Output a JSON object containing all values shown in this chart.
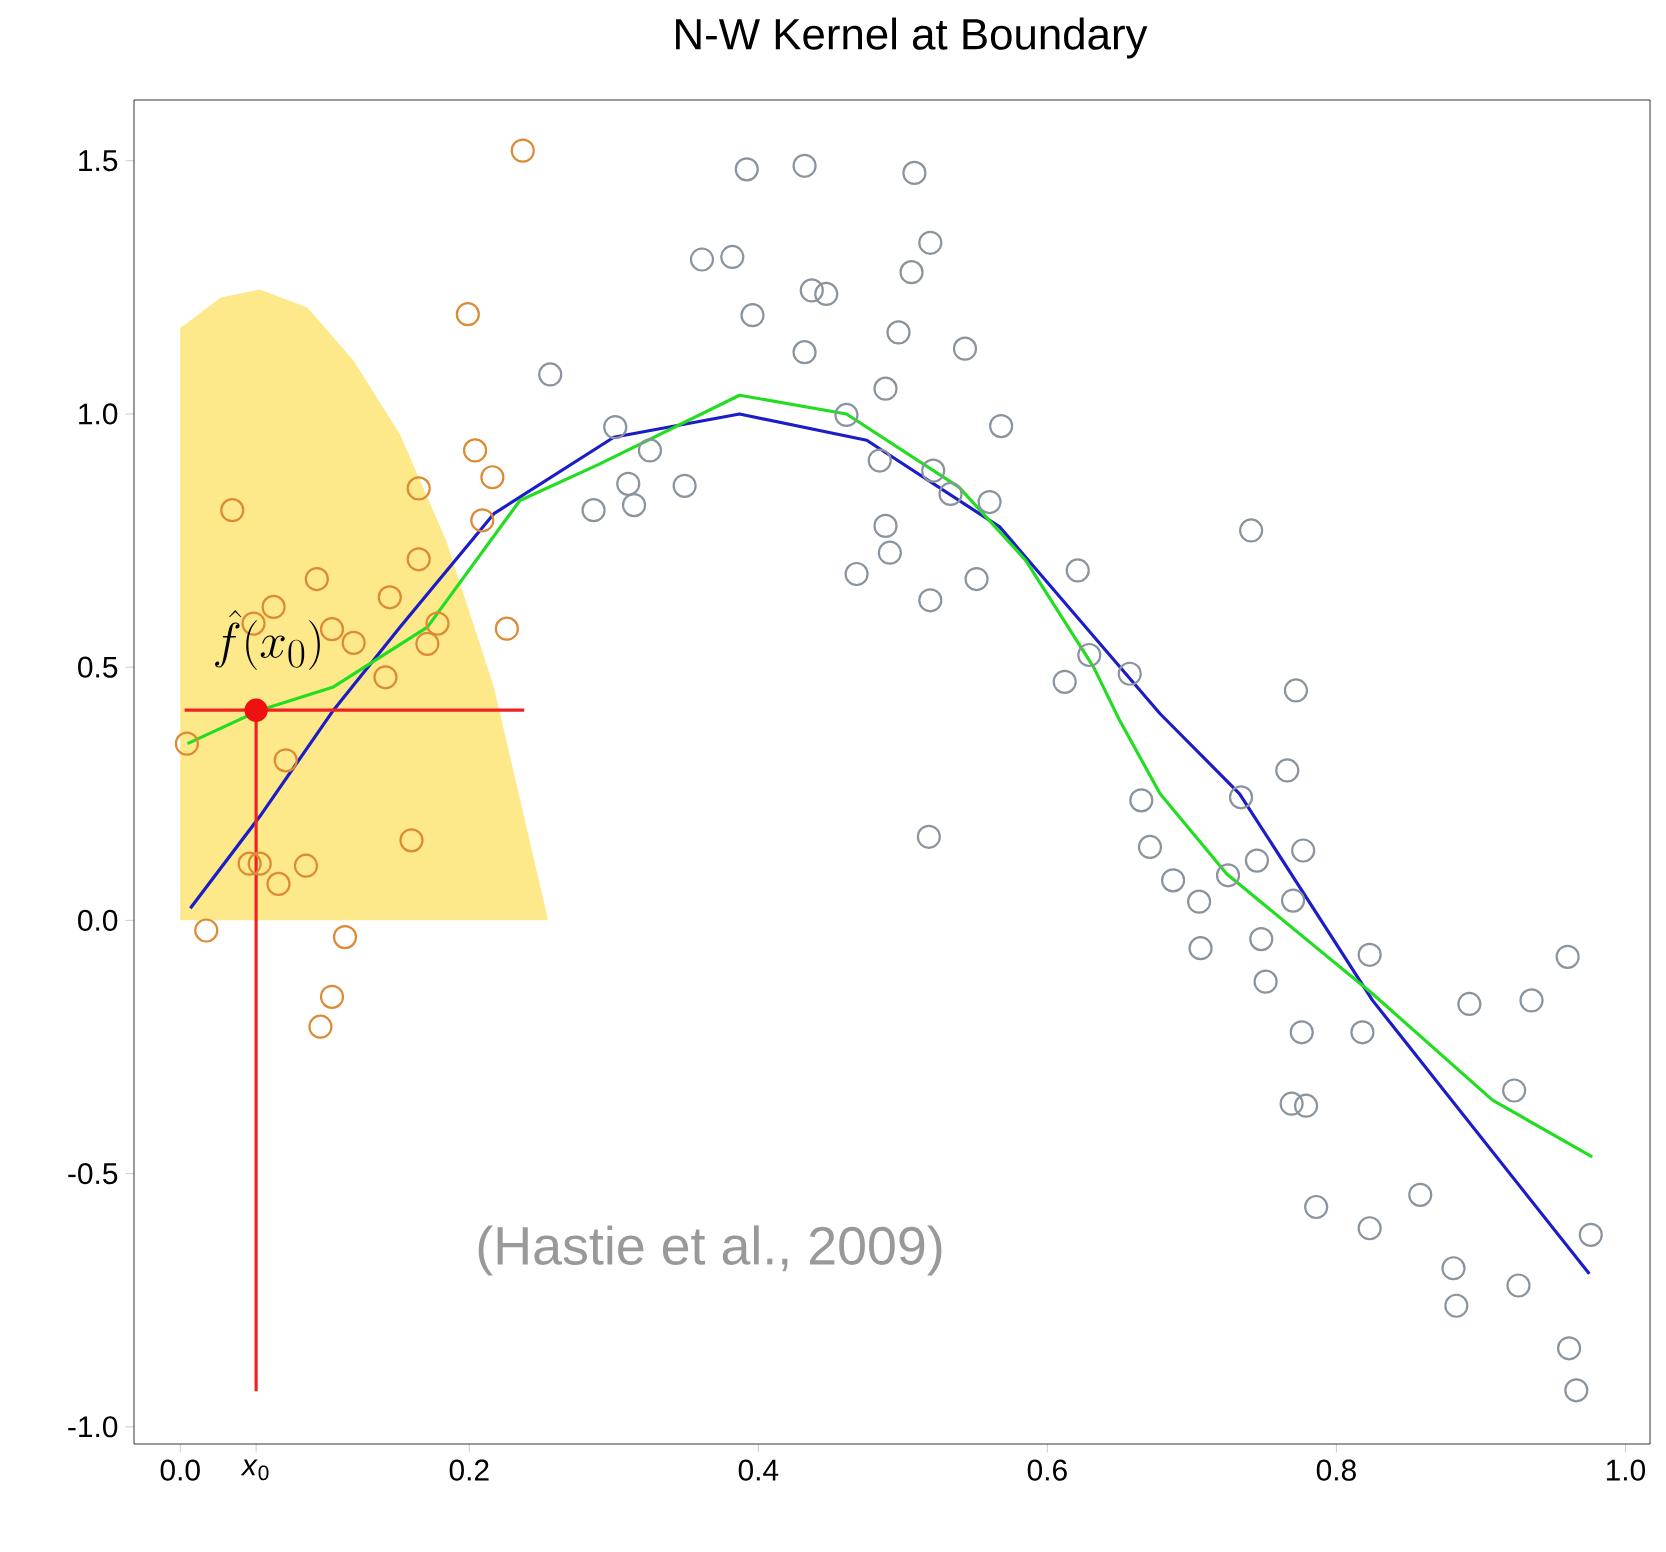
{
  "chart_data": {
    "type": "scatter",
    "title": "N-W Kernel at Boundary",
    "xlim": [
      -0.032,
      1.017
    ],
    "ylim": [
      -1.034,
      1.62
    ],
    "xticks": [
      {
        "value": 0,
        "label": "0.0"
      },
      {
        "value": 0.0525,
        "label": "*x*$_{0}$"
      },
      0.2,
      0.4,
      0.6,
      0.8,
      {
        "value": 1,
        "label": "1.0"
      }
    ],
    "yticks": [
      {
        "value": -1,
        "label": "-1.0"
      },
      -0.5,
      {
        "value": 0,
        "label": "0.0"
      },
      0.5,
      {
        "value": 1,
        "label": "1.0"
      },
      1.5
    ],
    "annotations": [
      {
        "text": "\\hat{f}(x_0)",
        "x": 0.0525,
        "y": 0.415
      },
      "(Hastie et al., 2009)"
    ],
    "series": [
      {
        "type": "area",
        "color": "#fde98a",
        "marker": "none",
        "x": [
          0.0,
          0.005,
          0.028,
          0.055,
          0.088,
          0.12,
          0.152,
          0.184,
          0.217,
          0.254
        ],
        "values": [
          1.17,
          1.18,
          1.23,
          1.246,
          1.21,
          1.105,
          0.96,
          0.75,
          0.461,
          0.007
        ]
      },
      {
        "color": "#dd8a35",
        "marker": "circle",
        "x": [
          0.237,
          0.199,
          0.036,
          0.204,
          0.216,
          0.165,
          0.209,
          0.165,
          0.0945,
          0.0646,
          0.0507,
          0.145,
          0.105,
          0.12,
          0.171,
          0.178,
          0.226,
          0.142,
          0.0046,
          0.073,
          0.16,
          0.048,
          0.055,
          0.068,
          0.087,
          0.018,
          0.114,
          0.105,
          0.097
        ],
        "values": [
          1.52,
          1.197,
          0.81,
          0.928,
          0.875,
          0.853,
          0.79,
          0.713,
          0.674,
          0.619,
          0.586,
          0.638,
          0.575,
          0.548,
          0.546,
          0.586,
          0.576,
          0.48,
          0.349,
          0.316,
          0.158,
          0.112,
          0.112,
          0.072,
          0.108,
          -0.02,
          -0.033,
          -0.151,
          -0.21
        ]
      },
      {
        "color": "#8a949e",
        "marker": "circle",
        "x": [
          0.256,
          0.286,
          0.301,
          0.325,
          0.31,
          0.314,
          0.349,
          0.392,
          0.432,
          0.508,
          0.361,
          0.382,
          0.519,
          0.506,
          0.396,
          0.437,
          0.447,
          0.432,
          0.497,
          0.543,
          0.488,
          0.461,
          0.568,
          0.484,
          0.521,
          0.533,
          0.56,
          0.488,
          0.491,
          0.468,
          0.551,
          0.519,
          0.621,
          0.629,
          0.612,
          0.657,
          0.518,
          0.665,
          0.671,
          0.741,
          0.772,
          0.766,
          0.734,
          0.777,
          0.687,
          0.705,
          0.725,
          0.745,
          0.77,
          0.706,
          0.748,
          0.751,
          0.823,
          0.776,
          0.818,
          0.769,
          0.779,
          0.892,
          0.935,
          0.96,
          0.923,
          0.786,
          0.823,
          0.858,
          0.881,
          0.883,
          0.926,
          0.976,
          0.961,
          0.966
        ],
        "values": [
          1.078,
          0.81,
          0.974,
          0.928,
          0.862,
          0.82,
          0.858,
          1.483,
          1.49,
          1.476,
          1.305,
          1.31,
          1.338,
          1.28,
          1.195,
          1.244,
          1.237,
          1.122,
          1.161,
          1.129,
          1.05,
          0.998,
          0.976,
          0.908,
          0.888,
          0.842,
          0.826,
          0.779,
          0.726,
          0.684,
          0.674,
          0.632,
          0.691,
          0.524,
          0.471,
          0.487,
          0.165,
          0.237,
          0.145,
          0.77,
          0.454,
          0.296,
          0.243,
          0.138,
          0.079,
          0.037,
          0.089,
          0.118,
          0.039,
          -0.055,
          -0.037,
          -0.121,
          -0.068,
          -0.221,
          -0.221,
          -0.362,
          -0.366,
          -0.165,
          -0.158,
          -0.072,
          -0.336,
          -0.566,
          -0.608,
          -0.542,
          -0.687,
          -0.761,
          -0.721,
          -0.621,
          -0.845,
          -0.928
        ]
      },
      {
        "type": "line",
        "color": "#1c1cc8",
        "marker": "none",
        "x": [
          0.007,
          0.055,
          0.106,
          0.152,
          0.217,
          0.3,
          0.387,
          0.475,
          0.567,
          0.678,
          0.733,
          0.825,
          0.975
        ],
        "values": [
          0.024,
          0.205,
          0.415,
          0.579,
          0.803,
          0.954,
          1.0,
          0.948,
          0.777,
          0.408,
          0.25,
          -0.158,
          -0.698
        ]
      },
      {
        "type": "line",
        "color": "#22dd22",
        "marker": "none",
        "x": [
          0.005,
          0.055,
          0.106,
          0.171,
          0.235,
          0.29,
          0.387,
          0.461,
          0.539,
          0.585,
          0.632,
          0.65,
          0.678,
          0.724,
          0.825,
          0.908,
          0.977
        ],
        "values": [
          0.349,
          0.415,
          0.461,
          0.579,
          0.829,
          0.901,
          1.037,
          1.0,
          0.855,
          0.711,
          0.5,
          0.395,
          0.25,
          0.092,
          -0.145,
          -0.355,
          -0.467
        ]
      },
      {
        "type": "line",
        "color": "#ee2222",
        "marker": "none",
        "x": [
          0.003,
          0.238
        ],
        "values": [
          0.415,
          0.415
        ]
      },
      {
        "type": "line",
        "color": "#ee2222",
        "marker": "none",
        "x": [
          0.0525,
          0.0525
        ],
        "values": [
          0.415,
          -0.93
        ]
      },
      {
        "type": "line",
        "color": "#ee1111",
        "marker": "circle",
        "x": [
          0.0525
        ],
        "values": [
          0.415
        ]
      }
    ]
  }
}
